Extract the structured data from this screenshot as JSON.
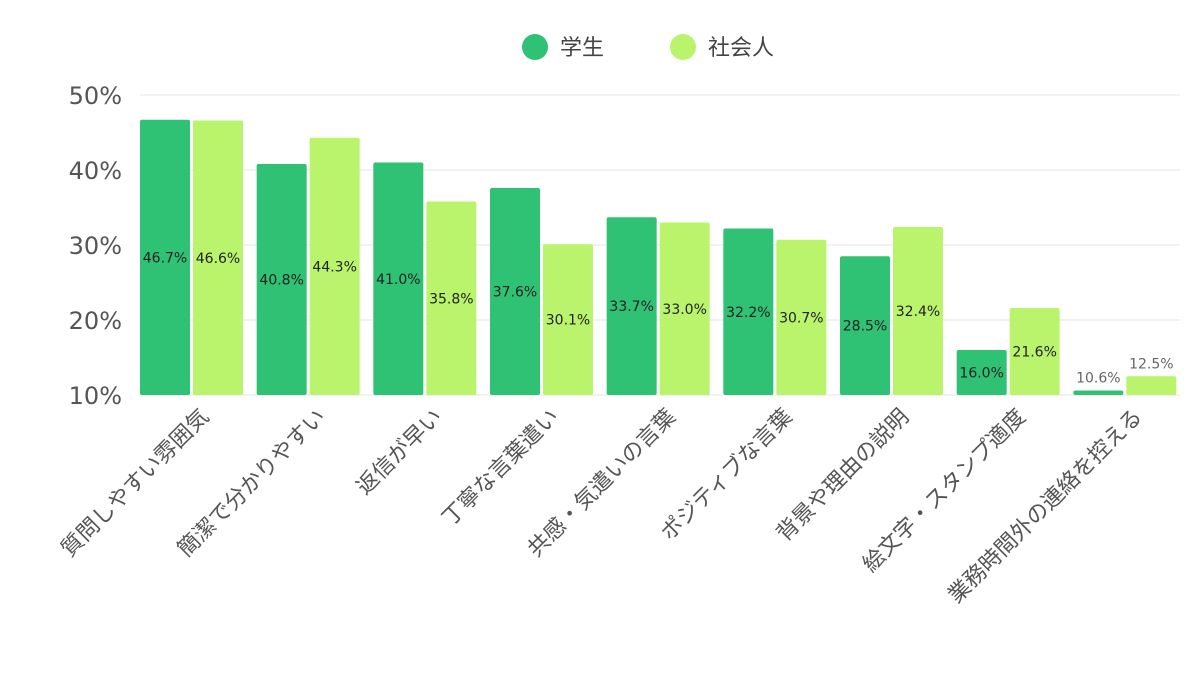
{
  "chart_data": {
    "type": "bar",
    "title": "",
    "xlabel": "",
    "ylabel": "",
    "categories": [
      "質問しやすい雰囲気",
      "簡潔で分かりやすい",
      "返信が早い",
      "丁寧な言葉遣い",
      "共感・気遣いの言葉",
      "ポジティブな言葉",
      "背景や理由の説明",
      "絵文字・スタンプ適度",
      "業務時間外の連絡を控える"
    ],
    "series": [
      {
        "name": "学生",
        "color": "#2fc174",
        "values": [
          46.7,
          40.8,
          41.0,
          37.6,
          33.7,
          32.2,
          28.5,
          16.0,
          10.6
        ]
      },
      {
        "name": "社会人",
        "color": "#b9f46c",
        "values": [
          46.6,
          44.3,
          35.8,
          30.1,
          33.0,
          30.7,
          32.4,
          21.6,
          12.5
        ]
      }
    ],
    "ylim": [
      10,
      50
    ],
    "yticks": [
      "10%",
      "20%",
      "30%",
      "40%",
      "50%"
    ],
    "value_suffix": "%",
    "grid": true,
    "legend_position": "top-center"
  }
}
